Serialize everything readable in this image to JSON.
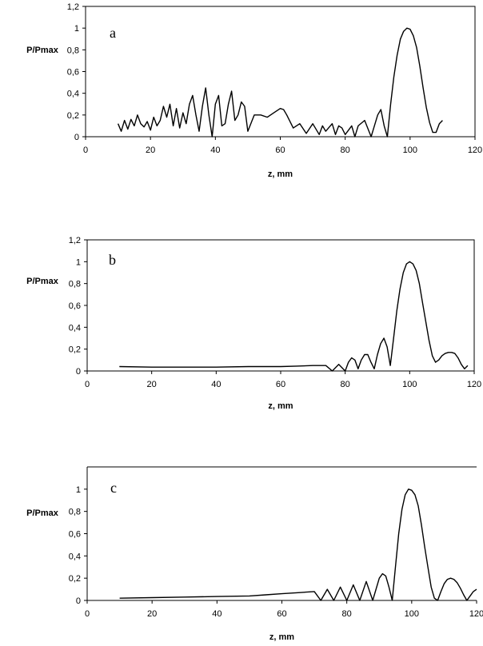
{
  "chart_data": [
    {
      "type": "line",
      "panel_label": "a",
      "xlabel": "z, mm",
      "ylabel": "P/Pmax",
      "xlim": [
        0,
        120
      ],
      "ylim": [
        0,
        1.2
      ],
      "x_ticks": [
        "0",
        "20",
        "40",
        "60",
        "80",
        "100",
        "120"
      ],
      "y_ticks": [
        "0",
        "0,2",
        "0,4",
        "0,6",
        "0,8",
        "1",
        "1,2"
      ],
      "frame": "full",
      "grid": false,
      "series": [
        {
          "x": [
            10,
            11,
            12,
            13,
            14,
            15,
            16,
            17,
            18,
            19,
            20,
            21,
            22,
            23,
            24,
            25,
            26,
            27,
            28,
            29,
            30,
            31,
            32,
            33,
            34,
            35,
            36,
            37,
            38,
            39,
            40,
            41,
            42,
            43,
            44,
            45,
            46,
            47,
            48,
            49,
            50,
            52,
            54,
            56,
            58,
            60,
            61,
            62,
            64,
            66,
            68,
            70,
            72,
            73,
            74,
            76,
            77,
            78,
            79,
            80,
            82,
            83,
            84,
            86,
            88,
            89,
            90,
            91,
            92,
            93,
            94,
            95,
            96,
            97,
            98,
            99,
            100,
            101,
            102,
            103,
            104,
            105,
            106,
            107,
            108,
            109,
            110
          ],
          "y": [
            0.12,
            0.05,
            0.15,
            0.07,
            0.16,
            0.1,
            0.2,
            0.12,
            0.09,
            0.14,
            0.06,
            0.18,
            0.1,
            0.15,
            0.28,
            0.18,
            0.3,
            0.1,
            0.26,
            0.08,
            0.22,
            0.12,
            0.3,
            0.38,
            0.2,
            0.05,
            0.28,
            0.45,
            0.2,
            0.0,
            0.3,
            0.38,
            0.1,
            0.12,
            0.3,
            0.42,
            0.15,
            0.2,
            0.32,
            0.28,
            0.05,
            0.2,
            0.2,
            0.18,
            0.22,
            0.26,
            0.25,
            0.2,
            0.08,
            0.12,
            0.03,
            0.12,
            0.02,
            0.1,
            0.05,
            0.12,
            0.02,
            0.1,
            0.08,
            0.02,
            0.1,
            0.0,
            0.1,
            0.15,
            0.0,
            0.1,
            0.2,
            0.25,
            0.1,
            0.0,
            0.3,
            0.55,
            0.75,
            0.9,
            0.97,
            1.0,
            0.99,
            0.93,
            0.82,
            0.65,
            0.45,
            0.27,
            0.13,
            0.04,
            0.04,
            0.12,
            0.15
          ]
        }
      ]
    },
    {
      "type": "line",
      "panel_label": "b",
      "xlabel": "z, mm",
      "ylabel": "P/Pmax",
      "xlim": [
        0,
        120
      ],
      "ylim": [
        0,
        1.2
      ],
      "x_ticks": [
        "0",
        "20",
        "40",
        "60",
        "80",
        "100",
        "120"
      ],
      "y_ticks": [
        "0",
        "0,2",
        "0,4",
        "0,6",
        "0,8",
        "1",
        "1,2"
      ],
      "frame": "full",
      "grid": false,
      "series": [
        {
          "x": [
            10,
            20,
            30,
            40,
            50,
            60,
            65,
            70,
            74,
            76,
            78,
            80,
            81,
            82,
            83,
            84,
            85,
            86,
            87,
            88,
            89,
            90,
            91,
            92,
            93,
            94,
            95,
            96,
            97,
            98,
            99,
            100,
            101,
            102,
            103,
            104,
            105,
            106,
            107,
            108,
            109,
            110,
            111,
            112,
            113,
            114,
            115,
            116,
            117,
            118
          ],
          "y": [
            0.04,
            0.035,
            0.035,
            0.035,
            0.04,
            0.04,
            0.045,
            0.05,
            0.05,
            0.0,
            0.06,
            0.0,
            0.08,
            0.12,
            0.1,
            0.02,
            0.1,
            0.15,
            0.15,
            0.08,
            0.02,
            0.15,
            0.25,
            0.3,
            0.22,
            0.05,
            0.3,
            0.55,
            0.75,
            0.9,
            0.98,
            1.0,
            0.98,
            0.92,
            0.8,
            0.62,
            0.45,
            0.28,
            0.14,
            0.08,
            0.1,
            0.14,
            0.16,
            0.17,
            0.17,
            0.16,
            0.12,
            0.06,
            0.02,
            0.05
          ]
        }
      ]
    },
    {
      "type": "line",
      "panel_label": "c",
      "xlabel": "z, mm",
      "ylabel": "P/Pmax",
      "xlim": [
        0,
        120
      ],
      "ylim": [
        0,
        1.2
      ],
      "x_ticks": [
        "0",
        "20",
        "40",
        "60",
        "80",
        "100",
        "120"
      ],
      "y_ticks": [
        "0",
        "0,2",
        "0,4",
        "0,6",
        "0,8",
        "1"
      ],
      "frame": "open",
      "grid": false,
      "series": [
        {
          "x": [
            10,
            20,
            30,
            40,
            50,
            55,
            60,
            65,
            70,
            72,
            74,
            76,
            78,
            80,
            82,
            84,
            86,
            88,
            90,
            91,
            92,
            93,
            94,
            95,
            96,
            97,
            98,
            99,
            100,
            101,
            102,
            103,
            104,
            105,
            106,
            107,
            108,
            109,
            110,
            111,
            112,
            113,
            114,
            115,
            116,
            117,
            118,
            119,
            120
          ],
          "y": [
            0.02,
            0.025,
            0.03,
            0.035,
            0.04,
            0.05,
            0.06,
            0.07,
            0.08,
            0.0,
            0.1,
            0.0,
            0.12,
            0.0,
            0.14,
            0.0,
            0.17,
            0.0,
            0.2,
            0.24,
            0.22,
            0.12,
            0.0,
            0.3,
            0.6,
            0.82,
            0.95,
            1.0,
            0.99,
            0.95,
            0.85,
            0.68,
            0.48,
            0.3,
            0.12,
            0.02,
            0.0,
            0.08,
            0.15,
            0.19,
            0.2,
            0.19,
            0.16,
            0.11,
            0.05,
            0.0,
            0.04,
            0.08,
            0.1
          ]
        }
      ]
    }
  ]
}
